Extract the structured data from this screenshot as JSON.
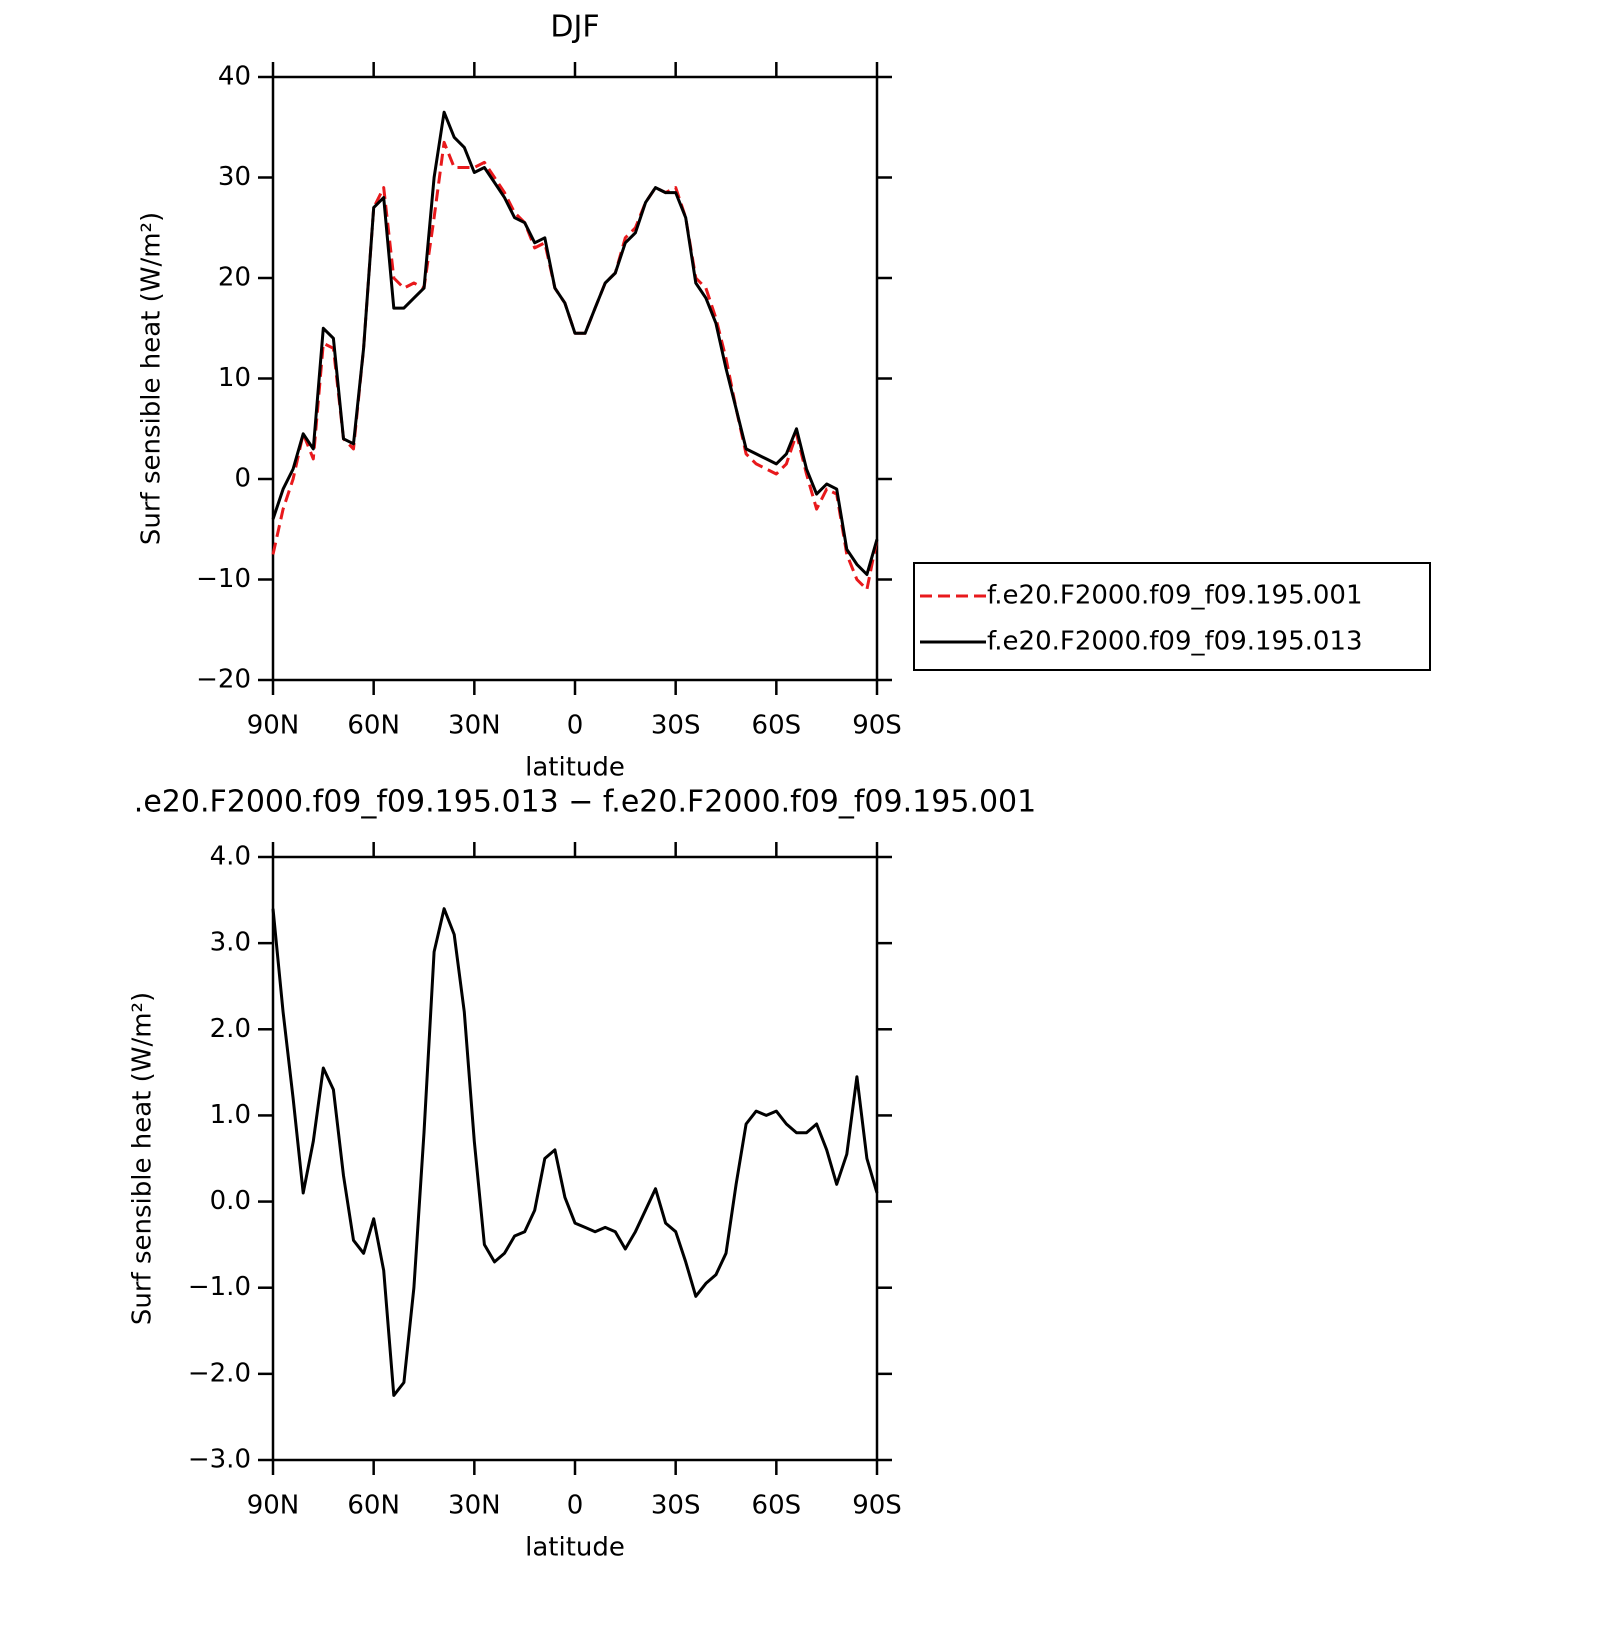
{
  "chart_data": [
    {
      "type": "line",
      "title": "DJF",
      "xlabel": "latitude",
      "ylabel": "Surf sensible heat (W/m²)",
      "x": [
        90,
        87,
        84,
        81,
        78,
        75,
        72,
        69,
        66,
        63,
        60,
        57,
        54,
        51,
        48,
        45,
        42,
        39,
        36,
        33,
        30,
        27,
        24,
        21,
        18,
        15,
        12,
        9,
        6,
        3,
        0,
        -3,
        -6,
        -9,
        -12,
        -15,
        -18,
        -21,
        -24,
        -27,
        -30,
        -33,
        -36,
        -39,
        -42,
        -45,
        -48,
        -51,
        -54,
        -57,
        -60,
        -63,
        -66,
        -69,
        -72,
        -75,
        -78,
        -81,
        -84,
        -87,
        -90
      ],
      "series": [
        {
          "name": "f.e20.F2000.f09_f09.195.001",
          "color": "#e8191c",
          "dash": true,
          "values": [
            -7.5,
            -3,
            0,
            4.5,
            2,
            13.5,
            13,
            4,
            3,
            13,
            27,
            29,
            20,
            19,
            19.5,
            19,
            26,
            33.5,
            31,
            31,
            31,
            31.5,
            30,
            28.5,
            26.5,
            25.5,
            23,
            23.5,
            19,
            17.5,
            14.5,
            14.5,
            17,
            19.5,
            20.5,
            24,
            25,
            27.5,
            29,
            28.5,
            29,
            26,
            20,
            19,
            16,
            12,
            7,
            2.5,
            1.5,
            1,
            0.5,
            1.5,
            4.5,
            0.5,
            -3,
            -1,
            -1.5,
            -7.5,
            -10,
            -11,
            -6
          ]
        },
        {
          "name": "f.e20.F2000.f09_f09.195.013",
          "color": "#000000",
          "dash": false,
          "values": [
            -4,
            -1,
            1,
            4.5,
            3,
            15,
            14,
            4,
            3.5,
            13,
            27,
            28,
            17,
            17,
            18,
            19,
            30,
            36.5,
            34,
            33,
            30.5,
            31,
            29.5,
            28,
            26,
            25.5,
            23.5,
            24,
            19,
            17.5,
            14.5,
            14.5,
            17,
            19.5,
            20.5,
            23.5,
            24.5,
            27.5,
            29,
            28.5,
            28.5,
            26,
            19.5,
            18,
            15.5,
            11,
            7,
            3,
            2.5,
            2,
            1.5,
            2.5,
            5,
            1,
            -1.5,
            -0.5,
            -1,
            -7,
            -8.5,
            -9.5,
            -6
          ]
        }
      ],
      "xlim": [
        90,
        -90
      ],
      "xticks": [
        {
          "value": 90,
          "label": "90N"
        },
        {
          "value": 60,
          "label": "60N"
        },
        {
          "value": 30,
          "label": "30N"
        },
        0,
        {
          "value": -30,
          "label": "30S"
        },
        {
          "value": -60,
          "label": "60S"
        },
        {
          "value": -90,
          "label": "90S"
        }
      ],
      "ylim": [
        -20,
        40
      ],
      "yticks": [
        {
          "value": -20,
          "label": "−20"
        },
        {
          "value": -10,
          "label": "−10"
        },
        0,
        10,
        20,
        30,
        40
      ],
      "legend": "right"
    },
    {
      "type": "line",
      "title": ".e20.F2000.f09_f09.195.013 − f.e20.F2000.f09_f09.195.001",
      "xlabel": "latitude",
      "ylabel": "Surf sensible heat (W/m²)",
      "x": [
        90,
        87,
        84,
        81,
        78,
        75,
        72,
        69,
        66,
        63,
        60,
        57,
        54,
        51,
        48,
        45,
        42,
        39,
        36,
        33,
        30,
        27,
        24,
        21,
        18,
        15,
        12,
        9,
        6,
        3,
        0,
        -3,
        -6,
        -9,
        -12,
        -15,
        -18,
        -21,
        -24,
        -27,
        -30,
        -33,
        -36,
        -39,
        -42,
        -45,
        -48,
        -51,
        -54,
        -57,
        -60,
        -63,
        -66,
        -69,
        -72,
        -75,
        -78,
        -81,
        -84,
        -87,
        -90
      ],
      "series": [
        {
          "color": "#000000",
          "values": [
            3.4,
            2.2,
            1.2,
            0.1,
            0.7,
            1.55,
            1.3,
            0.3,
            -0.45,
            -0.6,
            -0.2,
            -0.8,
            -2.25,
            -2.1,
            -1.0,
            0.8,
            2.9,
            3.4,
            3.1,
            2.2,
            0.7,
            -0.5,
            -0.7,
            -0.6,
            -0.4,
            -0.35,
            -0.1,
            0.5,
            0.6,
            0.05,
            -0.25,
            -0.3,
            -0.35,
            -0.3,
            -0.35,
            -0.55,
            -0.35,
            -0.1,
            0.15,
            -0.25,
            -0.35,
            -0.7,
            -1.1,
            -0.95,
            -0.85,
            -0.6,
            0.2,
            0.9,
            1.05,
            1.0,
            1.05,
            0.9,
            0.8,
            0.8,
            0.9,
            0.6,
            0.2,
            0.55,
            1.45,
            0.5,
            0.1
          ]
        }
      ],
      "xlim": [
        90,
        -90
      ],
      "xticks": [
        {
          "value": 90,
          "label": "90N"
        },
        {
          "value": 60,
          "label": "60N"
        },
        {
          "value": 30,
          "label": "30N"
        },
        0,
        {
          "value": -30,
          "label": "30S"
        },
        {
          "value": -60,
          "label": "60S"
        },
        {
          "value": -90,
          "label": "90S"
        }
      ],
      "ylim": [
        -3,
        4
      ],
      "yticks": [
        {
          "value": -3,
          "label": "−3.0"
        },
        {
          "value": -2,
          "label": "−2.0"
        },
        {
          "value": -1,
          "label": "−1.0"
        },
        {
          "value": 0,
          "label": "0.0"
        },
        {
          "value": 1,
          "label": "1.0"
        },
        {
          "value": 2,
          "label": "2.0"
        },
        {
          "value": 3,
          "label": "3.0"
        },
        {
          "value": 4,
          "label": "4.0"
        }
      ]
    }
  ]
}
